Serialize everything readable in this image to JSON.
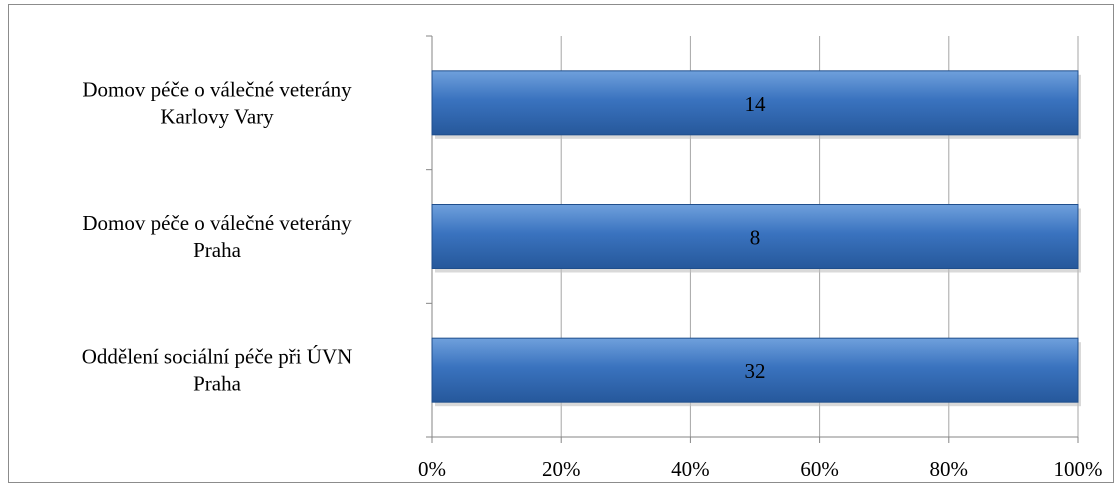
{
  "chart_data": {
    "type": "bar",
    "orientation": "horizontal",
    "stacked": "100%",
    "categories": [
      [
        "Domov péče o válečné veterány",
        "Karlovy Vary"
      ],
      [
        "Domov péče o válečné veterány",
        "Praha"
      ],
      [
        "Oddělení sociální péče při ÚVN",
        "Praha"
      ]
    ],
    "values": [
      14,
      8,
      32
    ],
    "percent": [
      100,
      100,
      100
    ],
    "xlim": [
      0,
      100
    ],
    "x_ticks": [
      "0%",
      "20%",
      "40%",
      "60%",
      "80%",
      "100%"
    ],
    "x_tick_values": [
      0,
      20,
      40,
      60,
      80,
      100
    ],
    "grid": true,
    "legend": "none",
    "colors": {
      "bar_fill_top": "#6fa0dc",
      "bar_fill_mid": "#3a73bf",
      "bar_fill_bottom": "#26589b",
      "bar_stroke": "#1f4e8c",
      "grid": "#a6a6a6",
      "axis": "#868686"
    }
  }
}
